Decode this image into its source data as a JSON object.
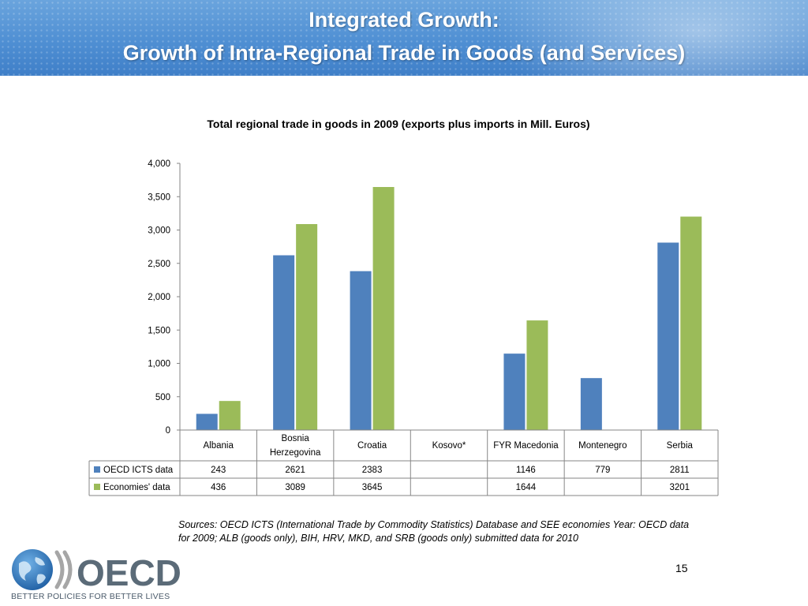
{
  "slide": {
    "title_line1": "Integrated Growth:",
    "title_line2": "Growth of Intra-Regional Trade in Goods (and Services)",
    "sources": "Sources: OECD ICTS (International Trade by Commodity Statistics) Database and SEE economies Year: OECD data for 2009; ALB (goods only), BIH, HRV, MKD, and SRB (goods only) submitted data for 2010",
    "page_number": "15",
    "logo_text": "OECD",
    "tagline": "BETTER POLICIES FOR BETTER LIVES"
  },
  "colors": {
    "oecd_series": "#4f81bd",
    "economies_series": "#9bbb59",
    "axis": "#868686",
    "table_border": "#868686"
  },
  "chart_data": {
    "type": "bar",
    "title": "Total regional trade in goods in 2009 (exports plus imports in Mill. Euros)",
    "categories": [
      [
        "Albania"
      ],
      [
        "Bosnia",
        "Herzegovina"
      ],
      [
        "Croatia"
      ],
      [
        "Kosovo*"
      ],
      [
        "FYR Macedonia"
      ],
      [
        "Montenegro"
      ],
      [
        "Serbia"
      ]
    ],
    "series": [
      {
        "name": "OECD ICTS data",
        "values": [
          243,
          2621,
          2383,
          null,
          1146,
          779,
          2811
        ]
      },
      {
        "name": "Economies' data",
        "values": [
          436,
          3089,
          3645,
          null,
          1644,
          null,
          3201
        ]
      }
    ],
    "ylim": [
      0,
      4000
    ],
    "yticks": [
      0,
      500,
      1000,
      1500,
      2000,
      2500,
      3000,
      3500,
      4000
    ],
    "ytick_labels": [
      "0",
      "500",
      "1,000",
      "1,500",
      "2,000",
      "2,500",
      "3,000",
      "3,500",
      "4,000"
    ],
    "data_table": true,
    "grid": false,
    "legend": "data-table"
  }
}
